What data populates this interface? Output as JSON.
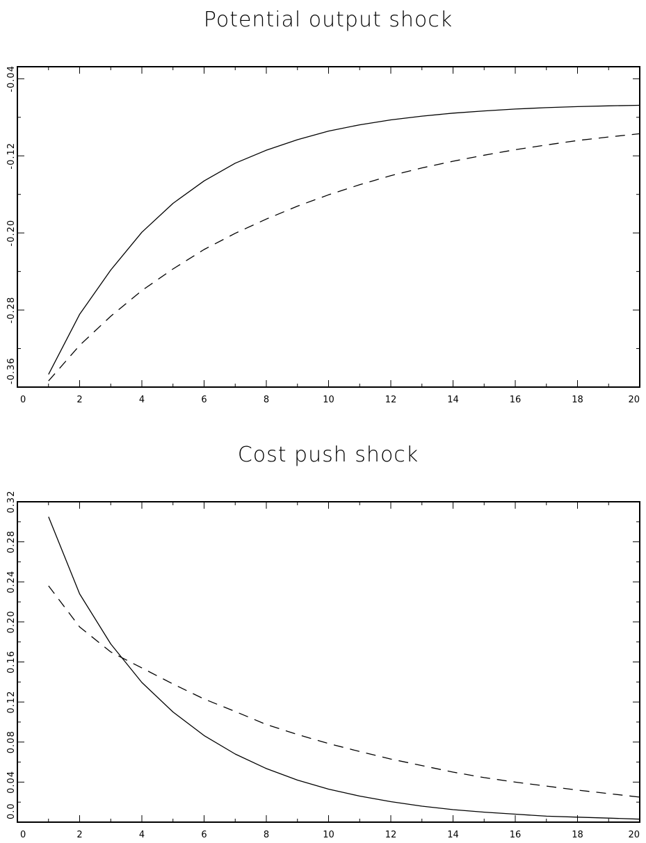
{
  "chart_data": [
    {
      "type": "line",
      "title": "Potential output shock",
      "xlabel": "",
      "ylabel": "",
      "xlim": [
        0,
        20
      ],
      "ylim": [
        -0.36,
        -0.0275
      ],
      "xticks": [
        0,
        2,
        4,
        6,
        8,
        10,
        12,
        14,
        16,
        18,
        20
      ],
      "xtick_labels": [
        "0",
        "2",
        "4",
        "6",
        "8",
        "10",
        "12",
        "14",
        "16",
        "18",
        "20"
      ],
      "yticks": [
        -0.36,
        -0.28,
        -0.2,
        -0.12,
        -0.04
      ],
      "ytick_labels": [
        "-0.36",
        "-0.28",
        "-0.20",
        "-0.12",
        "-0.04"
      ],
      "grid": false,
      "legend": false,
      "x": [
        1,
        2,
        3,
        4,
        5,
        6,
        7,
        8,
        9,
        10,
        11,
        12,
        13,
        14,
        15,
        16,
        17,
        18,
        19,
        20
      ],
      "series": [
        {
          "style": "solid",
          "values": [
            -0.3468,
            -0.2845,
            -0.2385,
            -0.1993,
            -0.1693,
            -0.146,
            -0.1276,
            -0.1141,
            -0.1032,
            -0.0943,
            -0.0878,
            -0.0827,
            -0.0788,
            -0.0757,
            -0.0734,
            -0.0714,
            -0.07,
            -0.0689,
            -0.0681,
            -0.0675
          ]
        },
        {
          "style": "dashed",
          "values": [
            -0.3536,
            -0.3167,
            -0.2864,
            -0.2598,
            -0.2374,
            -0.2172,
            -0.2004,
            -0.1856,
            -0.1722,
            -0.1604,
            -0.15,
            -0.1405,
            -0.1325,
            -0.1256,
            -0.1193,
            -0.1136,
            -0.1087,
            -0.1041,
            -0.1004,
            -0.097
          ]
        }
      ]
    },
    {
      "type": "line",
      "title": "Cost push shock",
      "xlabel": "",
      "ylabel": "",
      "xlim": [
        0,
        20
      ],
      "ylim": [
        0,
        0.32
      ],
      "xticks": [
        0,
        2,
        4,
        6,
        8,
        10,
        12,
        14,
        16,
        18,
        20
      ],
      "xtick_labels": [
        "0",
        "2",
        "4",
        "6",
        "8",
        "10",
        "12",
        "14",
        "16",
        "18",
        "20"
      ],
      "yticks": [
        0,
        0.04,
        0.08,
        0.12,
        0.16,
        0.2,
        0.24,
        0.28,
        0.32
      ],
      "ytick_labels": [
        "0.0",
        "0.04",
        "0.08",
        "0.12",
        "0.16",
        "0.20",
        "0.24",
        "0.28",
        "0.32"
      ],
      "grid": false,
      "legend": false,
      "x": [
        1,
        2,
        3,
        4,
        5,
        6,
        7,
        8,
        9,
        10,
        11,
        12,
        13,
        14,
        15,
        16,
        17,
        18,
        19,
        20
      ],
      "series": [
        {
          "style": "solid",
          "values": [
            0.305,
            0.228,
            0.178,
            0.1395,
            0.11,
            0.0865,
            0.068,
            0.0535,
            0.042,
            0.033,
            0.026,
            0.0205,
            0.016,
            0.0125,
            0.01,
            0.008,
            0.006,
            0.005,
            0.004,
            0.003
          ]
        },
        {
          "style": "dashed",
          "values": [
            0.236,
            0.195,
            0.17,
            0.154,
            0.138,
            0.123,
            0.1105,
            0.0975,
            0.0875,
            0.0785,
            0.0705,
            0.063,
            0.0565,
            0.05,
            0.0445,
            0.04,
            0.036,
            0.032,
            0.0285,
            0.025
          ]
        }
      ]
    }
  ]
}
